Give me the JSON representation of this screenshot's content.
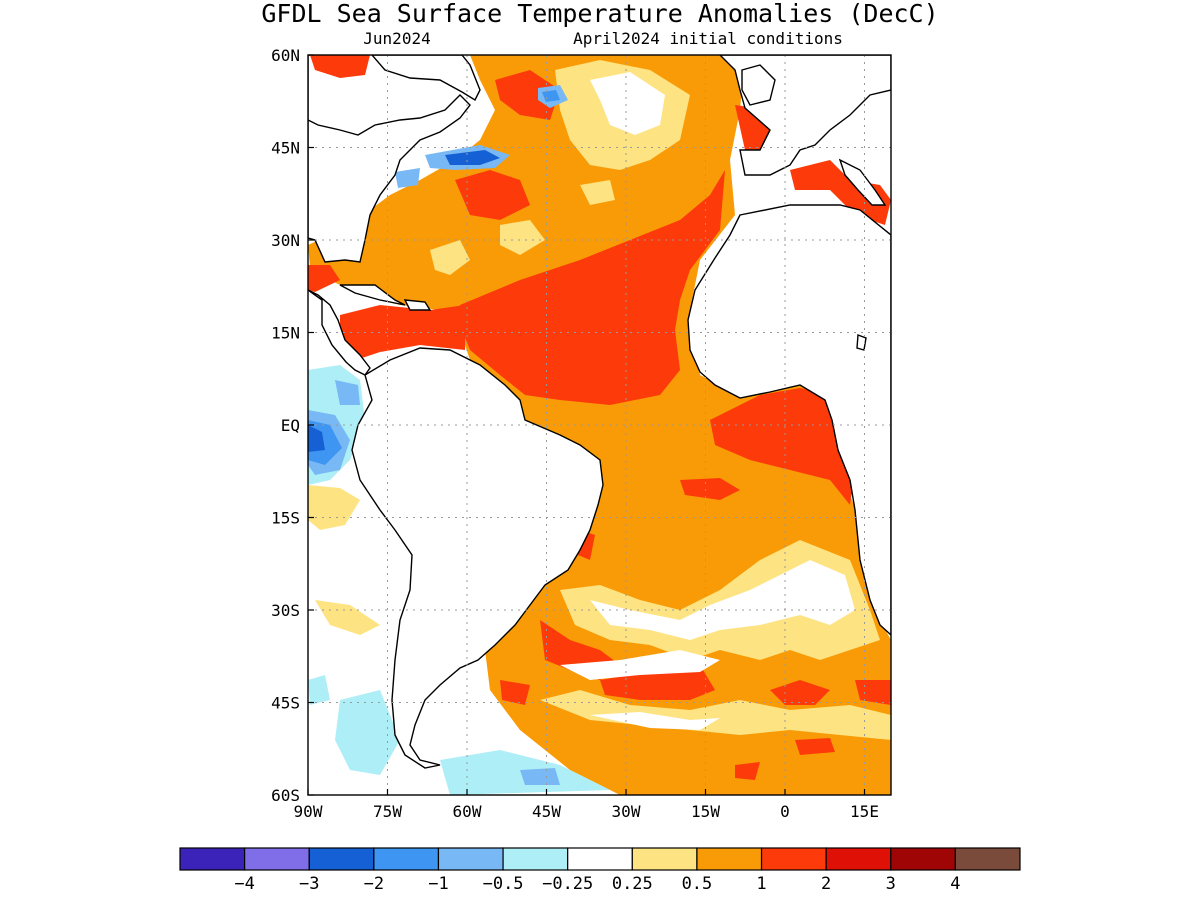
{
  "title": "GFDL Sea Surface Temperature Anomalies (DecC)",
  "subtitle_left": "Jun2024",
  "subtitle_right": "April2024 initial conditions",
  "axes": {
    "lon_ticks": [
      "90W",
      "75W",
      "60W",
      "45W",
      "30W",
      "15W",
      "0",
      "15E"
    ],
    "lat_ticks": [
      "60N",
      "45N",
      "30N",
      "15N",
      "EQ",
      "15S",
      "30S",
      "45S",
      "60S"
    ],
    "lon_range": [
      -90,
      20
    ],
    "lat_range": [
      -60,
      60
    ],
    "grid": "dotted"
  },
  "colorbar": {
    "labels": [
      "−4",
      "−3",
      "−2",
      "−1",
      "−0.5",
      "−0.25",
      "0.25",
      "0.5",
      "1",
      "2",
      "3",
      "4"
    ],
    "colors": [
      "#3b22b8",
      "#7f6ee8",
      "#1560d4",
      "#3e95f2",
      "#78b8f5",
      "#aeeef6",
      "#ffffff",
      "#fde382",
      "#f99b06",
      "#fd3a0a",
      "#df1006",
      "#a00505",
      "#7a4a3a"
    ]
  },
  "map_colors": {
    "land": "#ffffff",
    "warm_050": "#fde382",
    "warm_1": "#f99b06",
    "warm_2": "#fd3a0a",
    "warm_3": "#df1006",
    "cool_025": "#aeeef6",
    "cool_05": "#78b8f5",
    "cool_1": "#3e95f2",
    "cool_2": "#1560d4"
  }
}
